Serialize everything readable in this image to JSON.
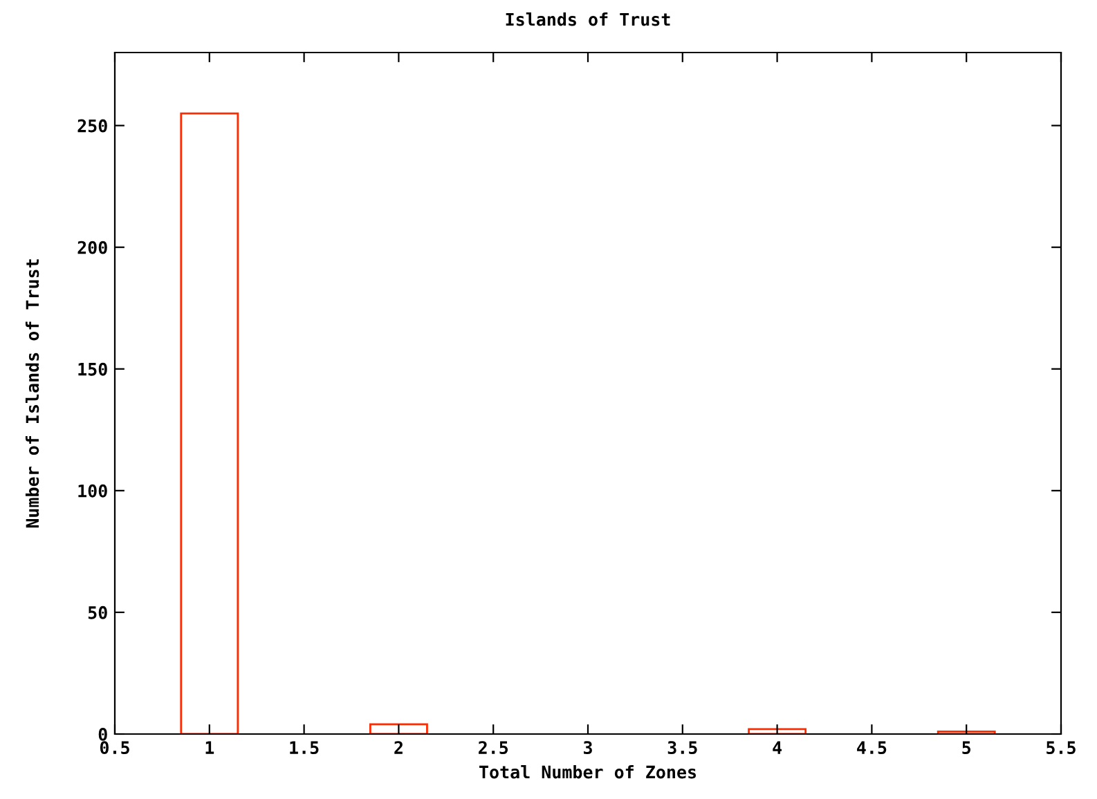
{
  "chart_data": {
    "type": "bar",
    "title": "Islands of Trust",
    "xlabel": "Total Number of Zones",
    "ylabel": "Number of Islands of Trust",
    "x": [
      1,
      2,
      4,
      5
    ],
    "values": [
      255,
      4,
      2,
      1
    ],
    "color": "#ff2a00",
    "xlim": [
      0.5,
      5.5
    ],
    "xticks": [
      {
        "value": 0.5,
        "label": "0.5"
      },
      1,
      {
        "value": 1.5,
        "label": "1.5"
      },
      2,
      {
        "value": 2.5,
        "label": "2.5"
      },
      3,
      {
        "value": 3.5,
        "label": "3.5"
      },
      4,
      {
        "value": 4.5,
        "label": "4.5"
      },
      5,
      {
        "value": 5.5,
        "label": "5.5"
      }
    ],
    "ylim": [
      0,
      280
    ],
    "yticks": [
      0,
      50,
      100,
      150,
      200,
      250
    ],
    "grid": false,
    "legend": false
  }
}
